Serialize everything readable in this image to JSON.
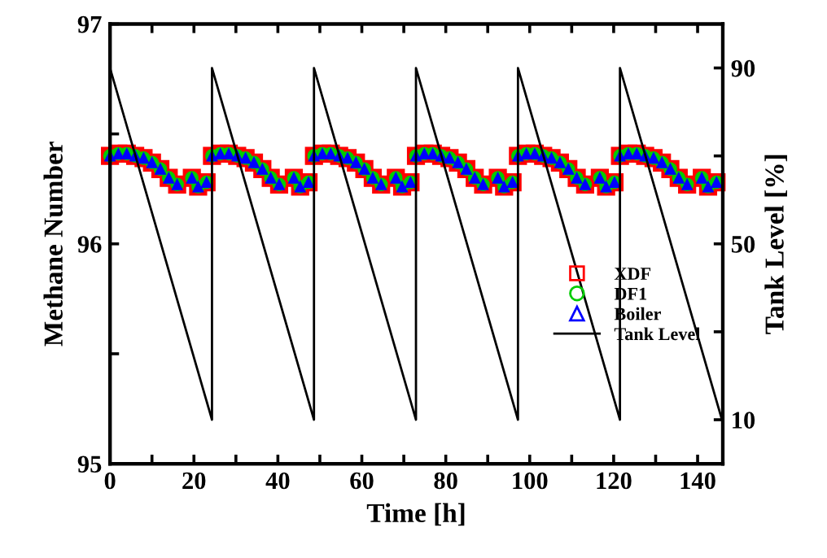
{
  "chart_data": {
    "type": "scatter",
    "xlabel": "Time [h]",
    "ylabel": "Methane Number",
    "y2label": "Tank Level [%]",
    "xlim": [
      0,
      146
    ],
    "xticks": [
      0,
      {
        "value": 10,
        "label": null
      },
      20,
      {
        "value": 30,
        "label": null
      },
      40,
      {
        "value": 50,
        "label": null
      },
      60,
      {
        "value": 70,
        "label": null
      },
      80,
      {
        "value": 90,
        "label": null
      },
      100,
      {
        "value": 110,
        "label": null
      },
      120,
      {
        "value": 130,
        "label": null
      },
      140
    ],
    "ylim": [
      95,
      97
    ],
    "yticks": [
      95,
      {
        "value": 95.5,
        "label": null
      },
      96,
      {
        "value": 96.5,
        "label": null
      },
      97
    ],
    "y2lim": [
      0,
      100
    ],
    "y2ticks": [
      10,
      {
        "value": 30,
        "label": null
      },
      50,
      {
        "value": 70,
        "label": null
      },
      90
    ],
    "legend": "right",
    "grid": false,
    "x": [
      0,
      2,
      4,
      6,
      8,
      10,
      12,
      14,
      16,
      19.5,
      21,
      23,
      24.3,
      26.3,
      28.3,
      30.3,
      32.3,
      34.3,
      36.3,
      38.3,
      40.3,
      43.8,
      45.3,
      47.3,
      48.6,
      50.6,
      52.6,
      54.6,
      56.6,
      58.6,
      60.6,
      62.6,
      64.6,
      68.1,
      69.6,
      71.6,
      72.9,
      74.9,
      76.9,
      78.9,
      80.9,
      82.9,
      84.9,
      86.9,
      88.9,
      92.4,
      93.9,
      95.9,
      97.2,
      99.2,
      101.2,
      103.2,
      105.2,
      107.2,
      109.2,
      111.2,
      113.2,
      116.7,
      118.2,
      120.2,
      121.5,
      123.5,
      125.5,
      127.5,
      129.5,
      131.5,
      133.5,
      135.5,
      137.5,
      141,
      142.5,
      144.5
    ],
    "series": [
      {
        "name": "XDF",
        "color": "#ff0000",
        "marker": "square",
        "values": [
          96.4,
          96.41,
          96.41,
          96.4,
          96.39,
          96.37,
          96.34,
          96.3,
          96.27,
          96.3,
          96.26,
          96.28,
          96.4,
          96.41,
          96.41,
          96.4,
          96.39,
          96.37,
          96.34,
          96.3,
          96.27,
          96.3,
          96.26,
          96.28,
          96.4,
          96.41,
          96.41,
          96.4,
          96.39,
          96.37,
          96.34,
          96.3,
          96.27,
          96.3,
          96.26,
          96.28,
          96.4,
          96.41,
          96.41,
          96.4,
          96.39,
          96.37,
          96.34,
          96.3,
          96.27,
          96.3,
          96.26,
          96.28,
          96.4,
          96.41,
          96.41,
          96.4,
          96.39,
          96.37,
          96.34,
          96.3,
          96.27,
          96.3,
          96.26,
          96.28,
          96.4,
          96.41,
          96.41,
          96.4,
          96.39,
          96.37,
          96.34,
          96.3,
          96.27,
          96.3,
          96.26,
          96.28
        ]
      },
      {
        "name": "DF1",
        "color": "#00cc00",
        "marker": "circle",
        "values": [
          96.4,
          96.41,
          96.41,
          96.4,
          96.39,
          96.37,
          96.34,
          96.3,
          96.27,
          96.3,
          96.26,
          96.28,
          96.4,
          96.41,
          96.41,
          96.4,
          96.39,
          96.37,
          96.34,
          96.3,
          96.27,
          96.3,
          96.26,
          96.28,
          96.4,
          96.41,
          96.41,
          96.4,
          96.39,
          96.37,
          96.34,
          96.3,
          96.27,
          96.3,
          96.26,
          96.28,
          96.4,
          96.41,
          96.41,
          96.4,
          96.39,
          96.37,
          96.34,
          96.3,
          96.27,
          96.3,
          96.26,
          96.28,
          96.4,
          96.41,
          96.41,
          96.4,
          96.39,
          96.37,
          96.34,
          96.3,
          96.27,
          96.3,
          96.26,
          96.28,
          96.4,
          96.41,
          96.41,
          96.4,
          96.39,
          96.37,
          96.34,
          96.3,
          96.27,
          96.3,
          96.26,
          96.28
        ]
      },
      {
        "name": "Boiler",
        "color": "#0000ff",
        "marker": "triangle",
        "values": [
          96.4,
          96.41,
          96.41,
          96.4,
          96.39,
          96.37,
          96.34,
          96.3,
          96.27,
          96.3,
          96.26,
          96.28,
          96.4,
          96.41,
          96.41,
          96.4,
          96.39,
          96.37,
          96.34,
          96.3,
          96.27,
          96.3,
          96.26,
          96.28,
          96.4,
          96.41,
          96.41,
          96.4,
          96.39,
          96.37,
          96.34,
          96.3,
          96.27,
          96.3,
          96.26,
          96.28,
          96.4,
          96.41,
          96.41,
          96.4,
          96.39,
          96.37,
          96.34,
          96.3,
          96.27,
          96.3,
          96.26,
          96.28,
          96.4,
          96.41,
          96.41,
          96.4,
          96.39,
          96.37,
          96.34,
          96.3,
          96.27,
          96.3,
          96.26,
          96.28,
          96.4,
          96.41,
          96.41,
          96.4,
          96.39,
          96.37,
          96.34,
          96.3,
          96.27,
          96.3,
          96.26,
          96.28
        ]
      },
      {
        "name": "Tank Level",
        "type": "line",
        "axis": "y2",
        "color": "#000000",
        "marker": "none",
        "line_style": "solid",
        "x": [
          0,
          24.3,
          24.3,
          48.6,
          48.6,
          72.9,
          72.9,
          97.2,
          97.2,
          121.5,
          121.5,
          145.8
        ],
        "values": [
          90,
          10,
          90,
          10,
          90,
          10,
          90,
          10,
          90,
          10,
          90,
          10
        ]
      }
    ]
  }
}
